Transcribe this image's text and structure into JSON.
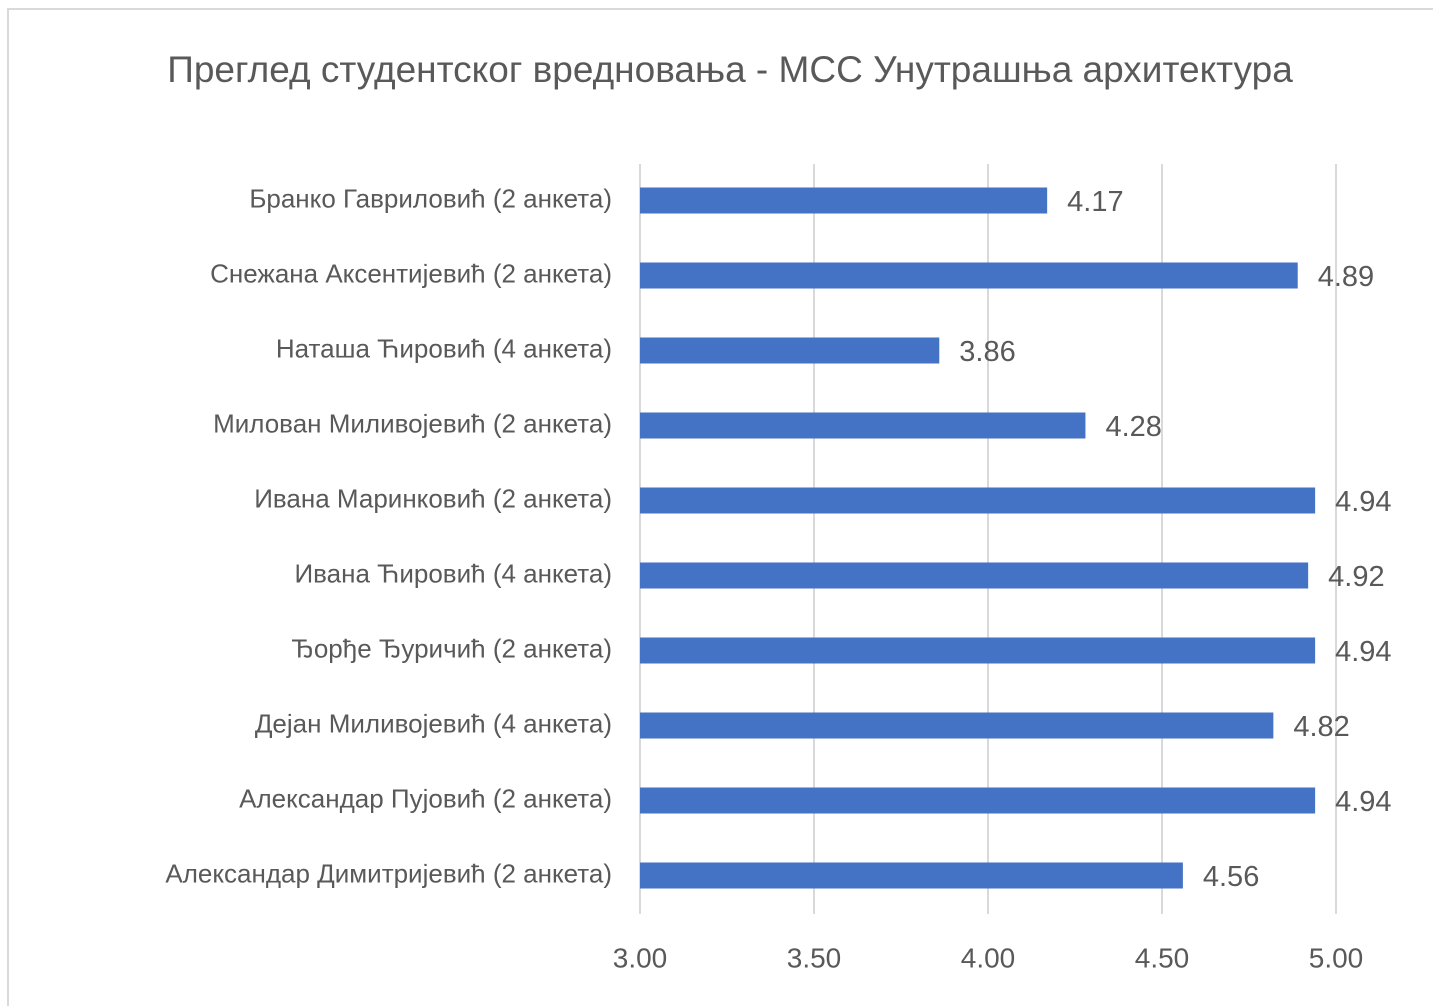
{
  "chart_data": {
    "type": "barh",
    "title": "Преглед студентског вредновања - МСС Унутрашња архитектура",
    "categories": [
      "Бранко Гавриловић (2 анкета)",
      "Снежана Аксентијевић (2 анкета)",
      "Наташа Ћировић (4 анкета)",
      "Милован Миливојевић (2 анкета)",
      "Ивана Маринковић (2 анкета)",
      "Ивана Ћировић (4 анкета)",
      "Ђорђе Ђуричић (2 анкета)",
      "Дејан Миливојевић (4 анкета)",
      "Александар Пујовић (2 анкета)",
      "Александар Димитријевић (2 анкета)"
    ],
    "values": [
      4.17,
      4.89,
      3.86,
      4.28,
      4.94,
      4.92,
      4.94,
      4.82,
      4.94,
      4.56
    ],
    "color": "#4472c4",
    "xlim": [
      3,
      5
    ],
    "xticks": [
      {
        "value": 3,
        "label": "3.00"
      },
      {
        "value": 3.5,
        "label": "3.50"
      },
      {
        "value": 4,
        "label": "4.00"
      },
      {
        "value": 4.5,
        "label": "4.50"
      },
      {
        "value": 5,
        "label": "5.00"
      }
    ],
    "grid": true
  }
}
